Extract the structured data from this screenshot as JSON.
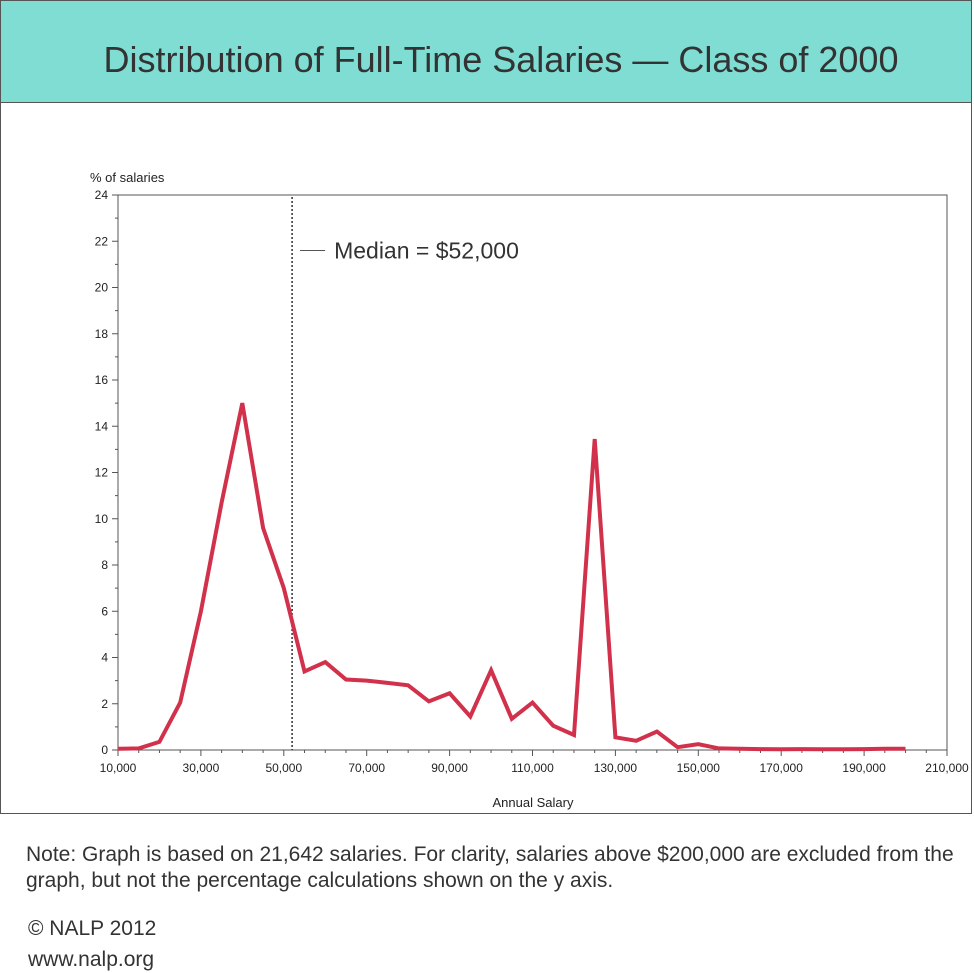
{
  "colors": {
    "banner": "#7fddd3",
    "series": "#d1314b",
    "axis": "#555555",
    "text": "#333333"
  },
  "title": "Distribution of Full-Time Salaries — Class of 2000",
  "note": "Note: Graph is based on 21,642 salaries. For clarity, salaries above $200,000 are excluded from the graph, but not the percentage calculations shown on the y axis.",
  "copyright": "© NALP 2012",
  "website": "www.nalp.org",
  "chart_data": {
    "type": "line",
    "title": "Distribution of Full-Time Salaries — Class of 2000",
    "xlabel": "Annual Salary",
    "ylabel": "% of salaries",
    "xlim": [
      10000,
      210000
    ],
    "ylim": [
      0,
      24
    ],
    "x_ticks": [
      10000,
      30000,
      50000,
      70000,
      90000,
      110000,
      130000,
      150000,
      170000,
      190000,
      210000
    ],
    "x_tick_labels": [
      "10,000",
      "30,000",
      "50,000",
      "70,000",
      "90,000",
      "110,000",
      "130,000",
      "150,000",
      "170,000",
      "190,000",
      "210,000"
    ],
    "x_minor_step": 5000,
    "y_ticks": [
      0,
      2,
      4,
      6,
      8,
      10,
      12,
      14,
      16,
      18,
      20,
      22,
      24
    ],
    "y_tick_labels": [
      "0",
      "2",
      "4",
      "6",
      "8",
      "10",
      "12",
      "14",
      "16",
      "18",
      "20",
      "22",
      "24"
    ],
    "y_minor_step": 1,
    "series": [
      {
        "name": "% of salaries",
        "x": [
          10000,
          15000,
          20000,
          25000,
          30000,
          35000,
          40000,
          45000,
          50000,
          55000,
          60000,
          65000,
          70000,
          75000,
          80000,
          85000,
          90000,
          95000,
          100000,
          105000,
          110000,
          115000,
          120000,
          125000,
          130000,
          135000,
          140000,
          145000,
          150000,
          155000,
          160000,
          165000,
          170000,
          175000,
          180000,
          185000,
          190000,
          195000,
          200000
        ],
        "values": [
          0.05,
          0.07,
          0.35,
          2.05,
          6.0,
          10.7,
          15.0,
          9.6,
          7.0,
          3.4,
          3.8,
          3.05,
          3.0,
          2.9,
          2.8,
          2.1,
          2.45,
          1.45,
          3.45,
          1.35,
          2.05,
          1.05,
          0.65,
          13.45,
          0.55,
          0.4,
          0.8,
          0.12,
          0.25,
          0.07,
          0.05,
          0.04,
          0.03,
          0.04,
          0.03,
          0.03,
          0.04,
          0.05,
          0.05
        ]
      }
    ],
    "annotations": [
      {
        "type": "vline",
        "x": 52000,
        "style": "dotted",
        "label": "Median = $52,000"
      }
    ]
  }
}
